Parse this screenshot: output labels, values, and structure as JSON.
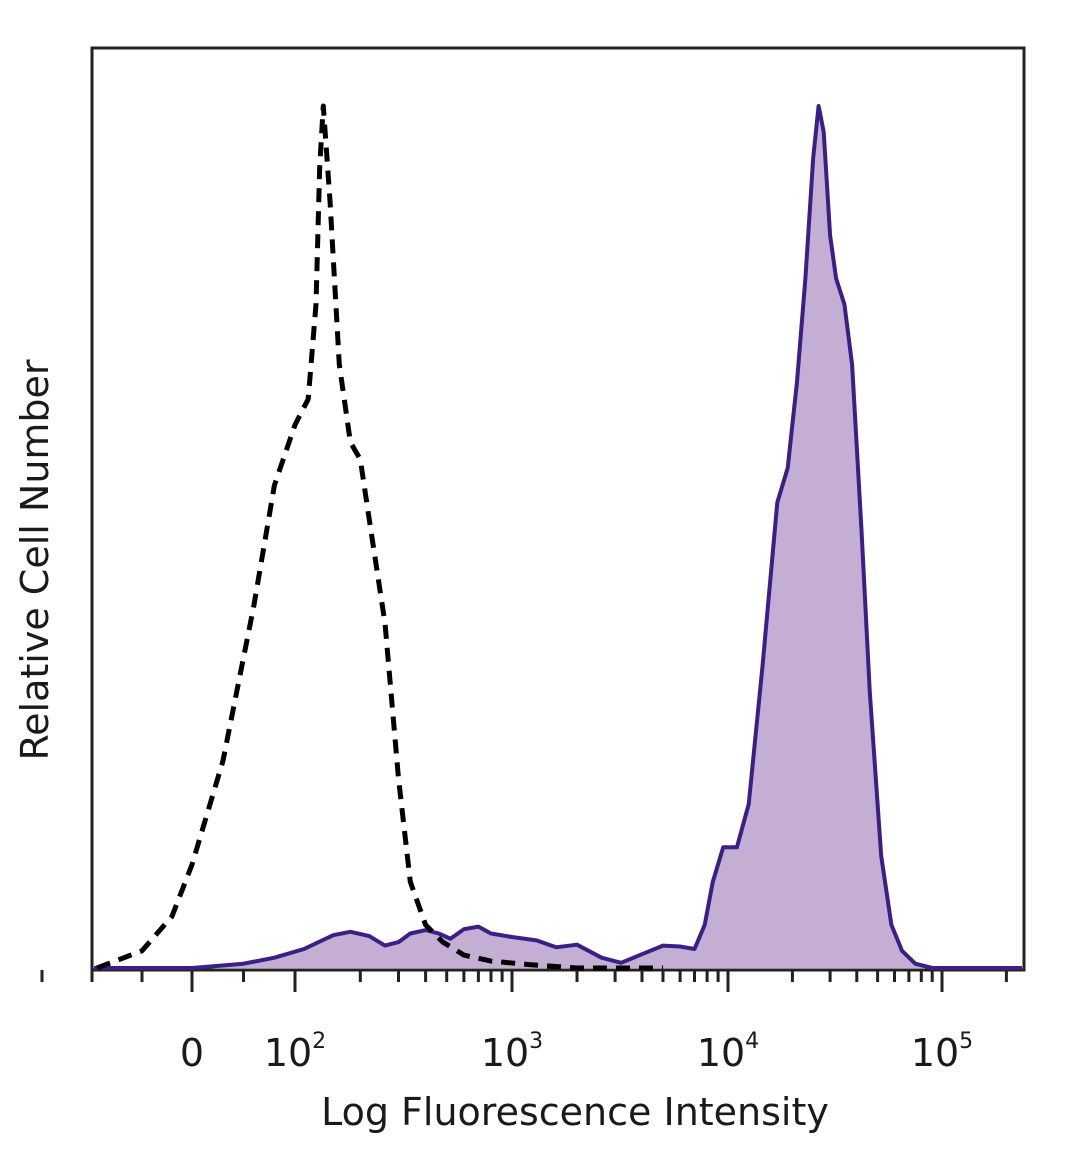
{
  "chart_data": {
    "type": "area",
    "xlabel": "Log Fluorescence Intensity",
    "ylabel": "Relative Cell Number",
    "x_scale": "biexponential",
    "xlim": [
      -200,
      250000
    ],
    "ylim": [
      0,
      1
    ],
    "grid": false,
    "x_ticks": [
      {
        "base": "0",
        "exp": "",
        "value": 0
      },
      {
        "base": "10",
        "exp": "2",
        "value": 100
      },
      {
        "base": "10",
        "exp": "3",
        "value": 1000
      },
      {
        "base": "10",
        "exp": "4",
        "value": 10000
      },
      {
        "base": "10",
        "exp": "5",
        "value": 100000
      }
    ],
    "series": [
      {
        "style": "dashed-outline",
        "color": "#000000",
        "points": [
          [
            -95,
            0.0
          ],
          [
            -50,
            0.02
          ],
          [
            -20,
            0.06
          ],
          [
            0,
            0.12
          ],
          [
            30,
            0.24
          ],
          [
            60,
            0.42
          ],
          [
            80,
            0.56
          ],
          [
            100,
            0.63
          ],
          [
            115,
            0.66
          ],
          [
            125,
            0.77
          ],
          [
            130,
            0.93
          ],
          [
            135,
            1.0
          ],
          [
            145,
            0.89
          ],
          [
            160,
            0.7
          ],
          [
            180,
            0.61
          ],
          [
            200,
            0.59
          ],
          [
            220,
            0.52
          ],
          [
            260,
            0.4
          ],
          [
            300,
            0.22
          ],
          [
            340,
            0.1
          ],
          [
            400,
            0.05
          ],
          [
            480,
            0.03
          ],
          [
            600,
            0.015
          ],
          [
            800,
            0.008
          ],
          [
            1200,
            0.004
          ],
          [
            2000,
            0.0
          ],
          [
            5000,
            0.0
          ]
        ]
      },
      {
        "style": "filled",
        "color": "#3a1f87",
        "fill": "#c5aed3",
        "points": [
          [
            -200,
            0.0
          ],
          [
            0,
            0.0
          ],
          [
            50,
            0.005
          ],
          [
            80,
            0.012
          ],
          [
            110,
            0.022
          ],
          [
            150,
            0.038
          ],
          [
            180,
            0.042
          ],
          [
            220,
            0.037
          ],
          [
            260,
            0.026
          ],
          [
            300,
            0.03
          ],
          [
            340,
            0.04
          ],
          [
            400,
            0.044
          ],
          [
            460,
            0.04
          ],
          [
            520,
            0.034
          ],
          [
            600,
            0.045
          ],
          [
            700,
            0.048
          ],
          [
            800,
            0.04
          ],
          [
            1000,
            0.036
          ],
          [
            1300,
            0.032
          ],
          [
            1600,
            0.024
          ],
          [
            2000,
            0.027
          ],
          [
            2600,
            0.012
          ],
          [
            3200,
            0.006
          ],
          [
            4000,
            0.016
          ],
          [
            5000,
            0.026
          ],
          [
            6000,
            0.025
          ],
          [
            7000,
            0.022
          ],
          [
            7800,
            0.05
          ],
          [
            8500,
            0.1
          ],
          [
            9500,
            0.14
          ],
          [
            11000,
            0.14
          ],
          [
            12500,
            0.19
          ],
          [
            14500,
            0.35
          ],
          [
            17000,
            0.54
          ],
          [
            19000,
            0.58
          ],
          [
            21000,
            0.68
          ],
          [
            23000,
            0.8
          ],
          [
            25000,
            0.94
          ],
          [
            26500,
            1.0
          ],
          [
            28000,
            0.97
          ],
          [
            30000,
            0.85
          ],
          [
            32000,
            0.8
          ],
          [
            35000,
            0.77
          ],
          [
            38000,
            0.7
          ],
          [
            42000,
            0.51
          ],
          [
            46000,
            0.32
          ],
          [
            52000,
            0.13
          ],
          [
            58000,
            0.05
          ],
          [
            65000,
            0.02
          ],
          [
            75000,
            0.005
          ],
          [
            90000,
            0.0
          ],
          [
            250000,
            0.0
          ]
        ]
      }
    ]
  }
}
